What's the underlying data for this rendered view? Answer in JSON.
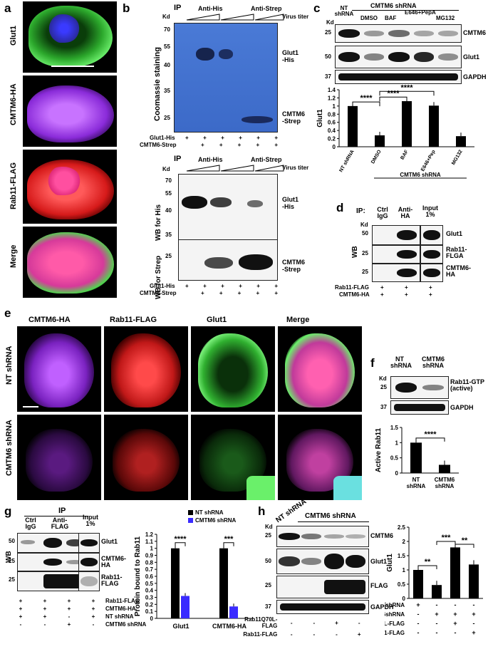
{
  "panel_a": {
    "letter": "a",
    "rows": [
      {
        "label": "Glut1",
        "color": "#34c230"
      },
      {
        "label": "CMTM6-HA",
        "color": "#b44dff"
      },
      {
        "label": "Rab11-FLAG",
        "color": "#ff2a2a"
      },
      {
        "label": "Merge",
        "color": "#ff66cc"
      }
    ]
  },
  "panel_b": {
    "letter": "b",
    "top": {
      "ip": "IP",
      "anti_his": "Anti-His",
      "anti_strep": "Anti-Strep",
      "virus": "Virus titer",
      "kd": "Kd",
      "ylabel": "Coomassie staining",
      "markers": [
        "70",
        "55",
        "40",
        "35",
        "25"
      ],
      "glut1": "Glut1\n-His",
      "cmtm6": "CMTM6\n-Strep",
      "row1_label": "Glut1-His",
      "row1": [
        "+",
        "+",
        "+",
        "+",
        "+",
        "+"
      ],
      "row2_label": "CMTM6-Strep",
      "row2": [
        "+",
        "+",
        "+",
        "+",
        "+"
      ]
    },
    "bottom": {
      "ip": "IP",
      "anti_his": "Anti-His",
      "anti_strep": "Anti-Strep",
      "virus": "Virus titer",
      "kd": "Kd",
      "wb_his": "WB for His",
      "wb_strep": "WB for Strep",
      "markers_his": [
        "70",
        "55",
        "40",
        "35"
      ],
      "markers_strep": [
        "25"
      ],
      "glut1": "Glut1\n-His",
      "cmtm6": "CMTM6\n-Strep",
      "row1_label": "Glut1-His",
      "row1": [
        "+",
        "+",
        "+",
        "+",
        "+",
        "+"
      ],
      "row2_label": "CMTM6-Strep",
      "row2": [
        "+",
        "+",
        "+",
        "+",
        "+"
      ]
    }
  },
  "panel_c": {
    "letter": "c",
    "title": "CMTM6 shRNA",
    "kd": "Kd",
    "lanes": [
      "NT shRNA",
      "DMSO",
      "BAF",
      "E646+PepA",
      "MG132"
    ],
    "bands": [
      {
        "label": "CMTM6",
        "kd": "25"
      },
      {
        "label": "Glut1",
        "kd": "50"
      },
      {
        "label": "GAPDH",
        "kd": "37"
      }
    ],
    "chart_data": {
      "type": "bar",
      "categories": [
        "NT shRNA",
        "DMSO",
        "BAF",
        "E646+Pep",
        "MG132"
      ],
      "values": [
        1.0,
        0.28,
        1.12,
        1.01,
        0.26
      ],
      "ylabel": "Glut1",
      "ylim": [
        0,
        1.4
      ],
      "yticks": [
        "0",
        "0.2",
        "0.4",
        "0.6",
        "0.8",
        "1",
        "1.2",
        "1.4"
      ],
      "xgroup": "CMTM6 shRNA",
      "sig": [
        "****",
        "****",
        "****"
      ]
    }
  },
  "panel_d": {
    "letter": "d",
    "ip": "IP:",
    "kd": "Kd",
    "wb": "WB",
    "cols": [
      "Ctrl IgG",
      "Anti-HA",
      "Input 1%"
    ],
    "bands": [
      {
        "label": "Glut1",
        "kd": "50"
      },
      {
        "label": "Rab11-FLGA",
        "kd": "25"
      },
      {
        "label": "CMTM6-HA",
        "kd": "25"
      }
    ],
    "row1_label": "Rab11-FLAG",
    "row1": [
      "+",
      "+",
      "+"
    ],
    "row2_label": "CMTM6-HA",
    "row2": [
      "+",
      "+",
      "+"
    ]
  },
  "panel_e": {
    "letter": "e",
    "cols": [
      "CMTM6-HA",
      "Rab11-FLAG",
      "Glut1",
      "Merge"
    ],
    "rows": [
      "NT shRNA",
      "CMTM6 shRNA"
    ]
  },
  "panel_f": {
    "letter": "f",
    "kd": "Kd",
    "lanes": [
      "NT shRNA",
      "CMTM6 shRNA"
    ],
    "bands": [
      {
        "label": "Rab11-GTP (active)",
        "kd": "25"
      },
      {
        "label": "GAPDH",
        "kd": "37"
      }
    ],
    "chart_data": {
      "type": "bar",
      "categories": [
        "NT shRNA",
        "CMTM6 shRNA"
      ],
      "values": [
        1.0,
        0.27
      ],
      "ylabel": "Active Rab11",
      "ylim": [
        0,
        1.5
      ],
      "yticks": [
        "0",
        "0.5",
        "1",
        "1.5"
      ],
      "sig": "****"
    }
  },
  "panel_g": {
    "letter": "g",
    "ip": "IP",
    "kd": "WB",
    "cols": [
      "Ctrl IgG",
      "Anti-FLAG",
      "Input 1%"
    ],
    "bands": [
      {
        "label": "Glut1",
        "kd": "50"
      },
      {
        "label": "CMTM6-HA",
        "kd": "25"
      },
      {
        "label": "Rab11-FLAG",
        "kd": "25"
      }
    ],
    "rows": [
      {
        "label": "Rab11-FLAG",
        "vals": [
          "+",
          "+",
          "+",
          "+"
        ]
      },
      {
        "label": "CMTM6-HA",
        "vals": [
          "+",
          "+",
          "+",
          "+"
        ]
      },
      {
        "label": "NT shRNA",
        "vals": [
          "+",
          "+",
          "-",
          "+"
        ]
      },
      {
        "label": "CMTM6 shRNA",
        "vals": [
          "-",
          "-",
          "+",
          "-"
        ]
      }
    ],
    "chart_data": {
      "type": "bar",
      "categories": [
        "Glut1",
        "CMTM6-HA"
      ],
      "series": [
        {
          "name": "NT shRNA",
          "values": [
            1.0,
            1.0
          ]
        },
        {
          "name": "CMTM6 shRNA",
          "values": [
            0.32,
            0.17
          ]
        }
      ],
      "ylabel": "Protein bound to Rab11",
      "ylim": [
        0,
        1.2
      ],
      "yticks": [
        "0",
        "0.1",
        "0.2",
        "0.3",
        "0.4",
        "0.5",
        "0.6",
        "0.7",
        "0.8",
        "0.9",
        "1",
        "1.1",
        "1.2"
      ],
      "sig": [
        "****",
        "***"
      ],
      "colors": [
        "#000000",
        "#3a2bff"
      ]
    }
  },
  "panel_h": {
    "letter": "h",
    "kd": "Kd",
    "nt": "NT shRNA",
    "cmtm6": "CMTM6 shRNA",
    "bands": [
      {
        "label": "CMTM6",
        "kd": "25"
      },
      {
        "label": "Glut1",
        "kd": "50"
      },
      {
        "label": "FLAG",
        "kd": "25"
      },
      {
        "label": "GAPDH",
        "kd": "37"
      }
    ],
    "rows": [
      {
        "label": "Rab11Q70L-FLAG",
        "vals": [
          "-",
          "-",
          "+",
          "-"
        ]
      },
      {
        "label": "Rab11-FLAG",
        "vals": [
          "-",
          "-",
          "-",
          "+"
        ]
      }
    ],
    "chart_data": {
      "type": "bar",
      "categories": [
        "1",
        "2",
        "3",
        "4"
      ],
      "values": [
        1.0,
        0.47,
        1.79,
        1.19
      ],
      "ylabel": "Glut1",
      "ylim": [
        0,
        2.5
      ],
      "yticks": [
        "0",
        "0.5",
        "1",
        "1.5",
        "2",
        "2.5"
      ],
      "conditions": [
        {
          "label": "NTshRNA",
          "vals": [
            "+",
            "-",
            "-",
            "-"
          ]
        },
        {
          "label": "CMTM6shRNA",
          "vals": [
            "-",
            "+",
            "+",
            "+"
          ]
        },
        {
          "label": "Rab11Q70L-FLAG",
          "vals": [
            "-",
            "-",
            "+",
            "-"
          ]
        },
        {
          "label": "Rab11-FLAG",
          "vals": [
            "-",
            "-",
            "-",
            "+"
          ]
        }
      ],
      "sig": [
        "**",
        "***",
        "**"
      ]
    }
  }
}
